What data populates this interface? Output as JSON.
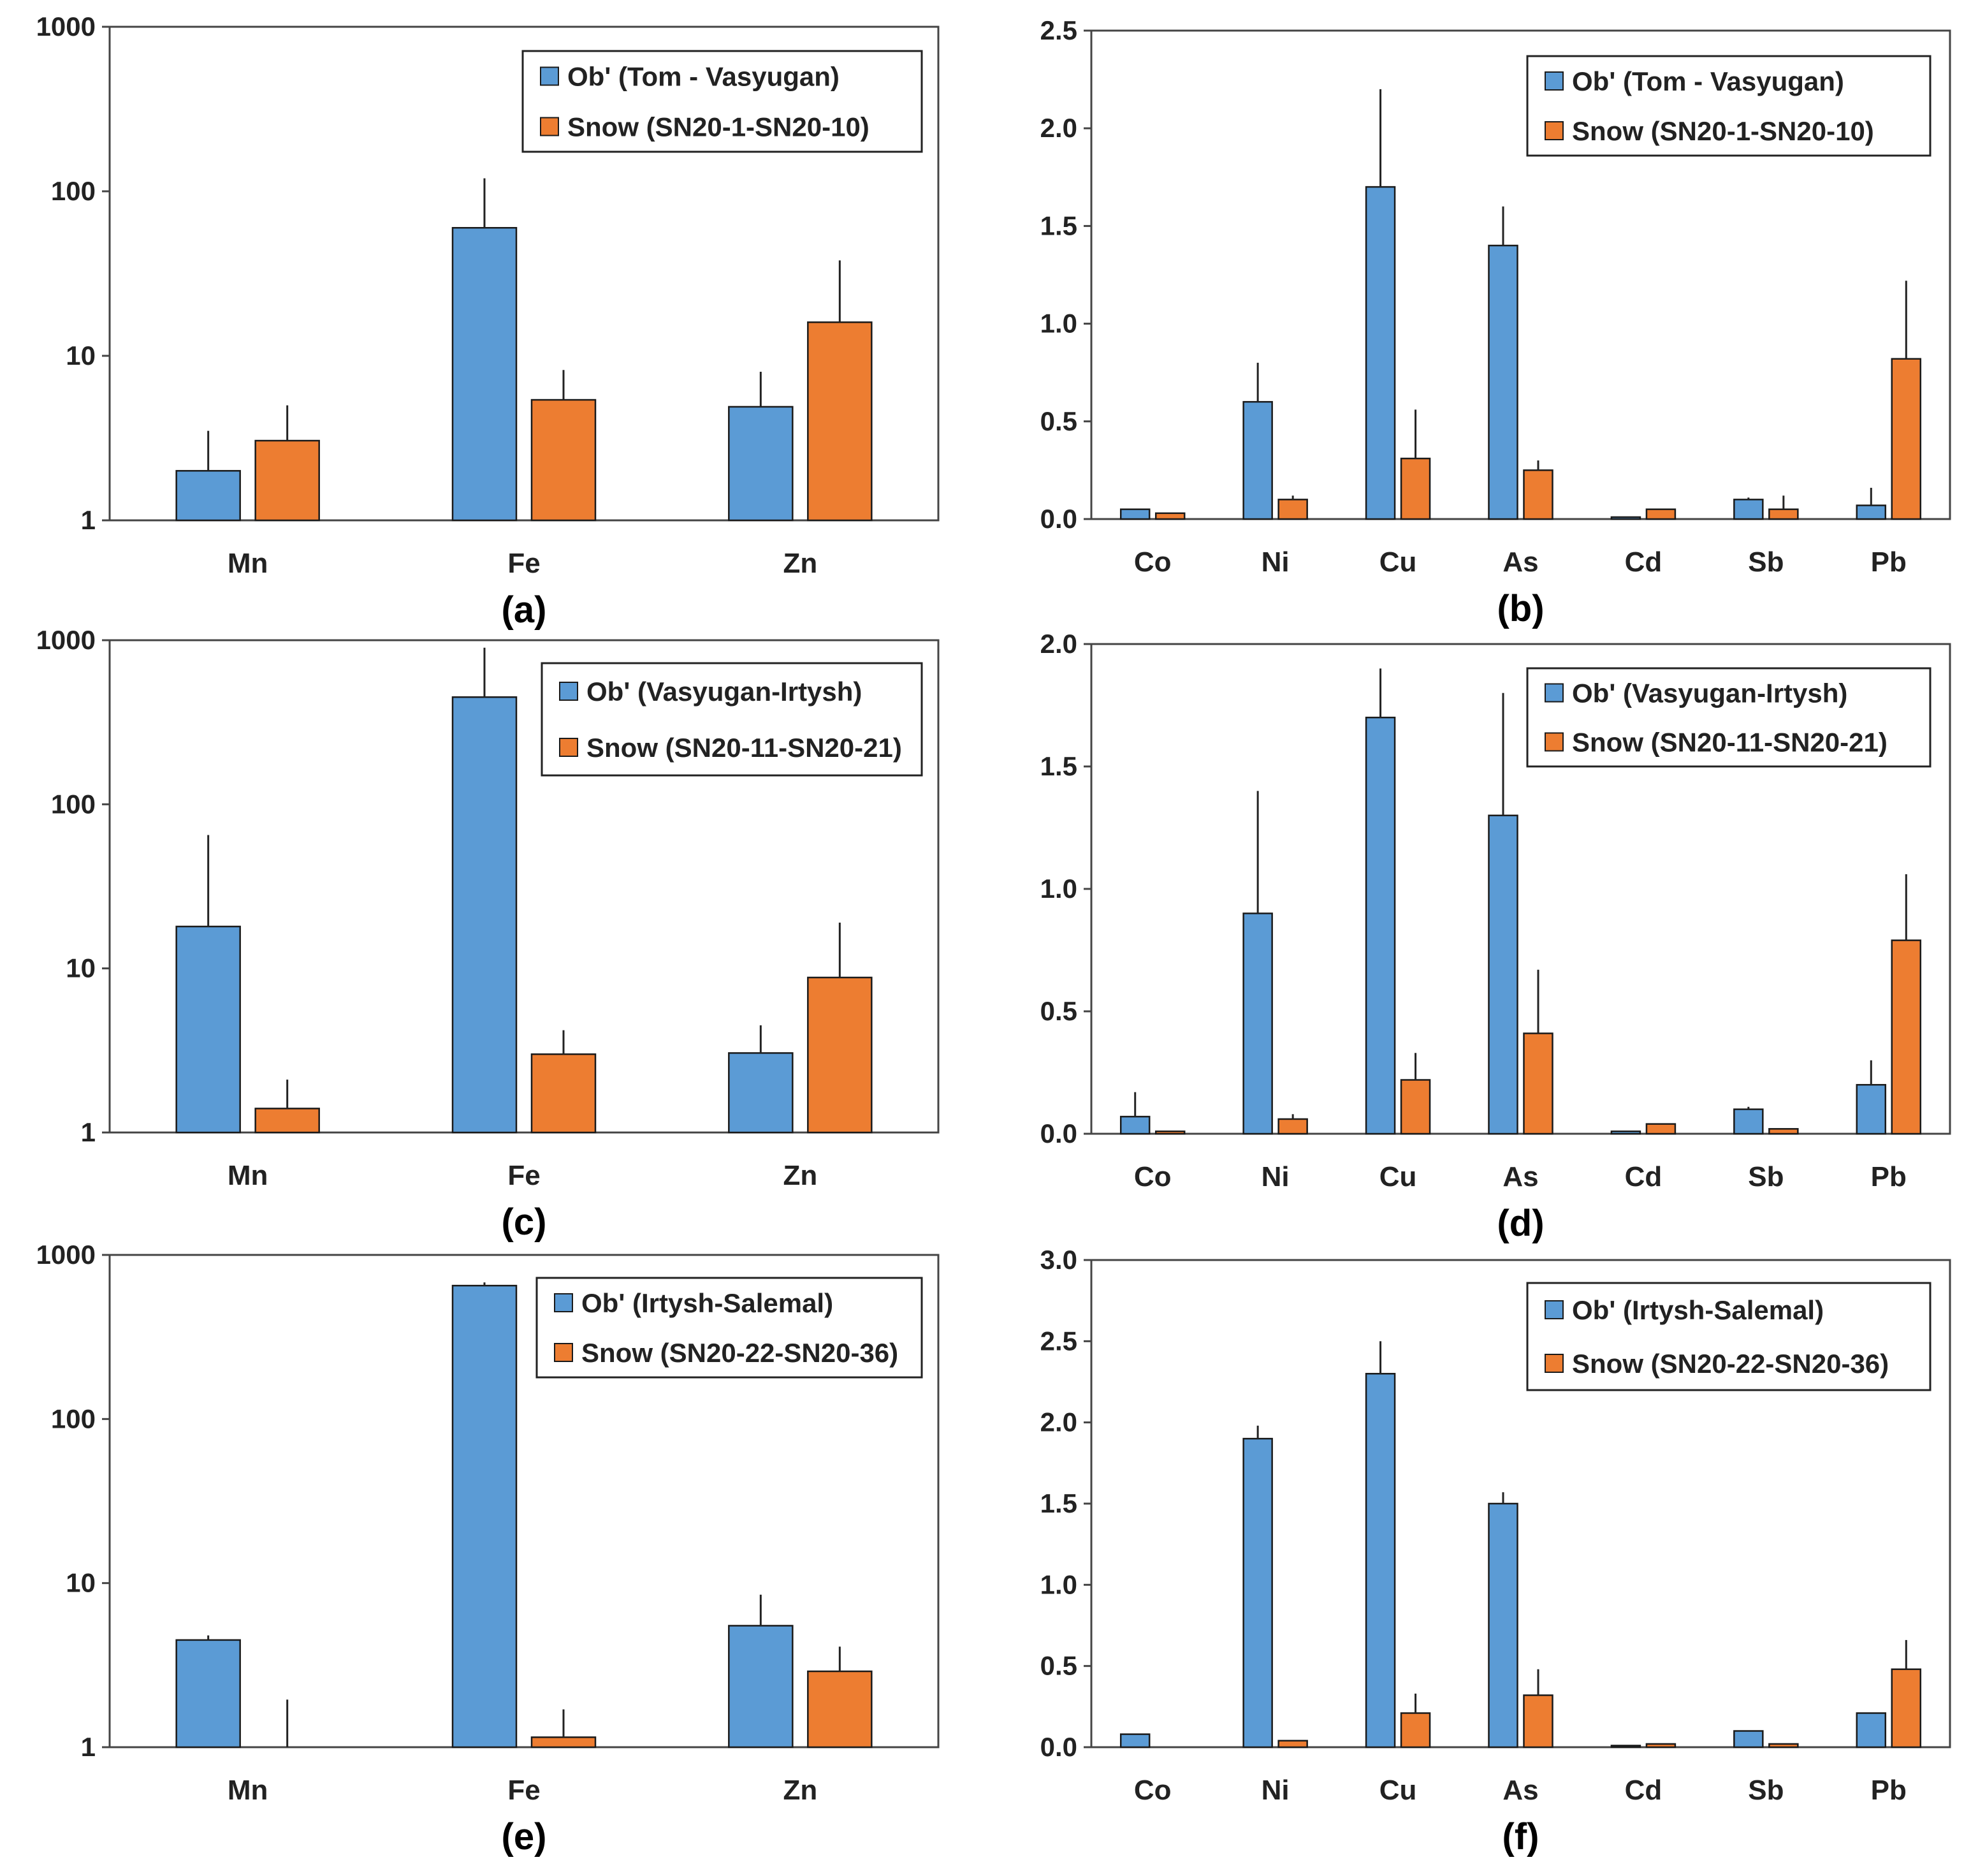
{
  "chart_data": [
    {
      "id": "a",
      "type": "bar",
      "scale": "log",
      "panel_label": "(a)",
      "categories": [
        "Mn",
        "Fe",
        "Zn"
      ],
      "ylim": [
        1,
        1000
      ],
      "y_ticks": [
        1,
        10,
        100,
        1000
      ],
      "y_tick_labels": [
        "1",
        "10",
        "100",
        "1000"
      ],
      "legend_position": "top-right",
      "series": [
        {
          "name": "Ob' (Tom - Vasyugan)",
          "color": "#5b9bd5",
          "values": [
            2,
            60,
            4.9
          ],
          "errors": [
            3.5,
            120,
            8
          ]
        },
        {
          "name": "Snow (SN20-1-SN20-10)",
          "color": "#ed7d31",
          "values": [
            3.05,
            5.4,
            16
          ],
          "errors": [
            5,
            8.2,
            38
          ]
        }
      ]
    },
    {
      "id": "b",
      "type": "bar",
      "scale": "linear",
      "panel_label": "(b)",
      "categories": [
        "Co",
        "Ni",
        "Cu",
        "As",
        "Cd",
        "Sb",
        "Pb"
      ],
      "ylim": [
        0,
        2.5
      ],
      "y_ticks": [
        0,
        0.5,
        1.0,
        1.5,
        2.0,
        2.5
      ],
      "y_tick_labels": [
        "0.0",
        "0.5",
        "1.0",
        "1.5",
        "2.0",
        "2.5"
      ],
      "legend_position": "top-right",
      "series": [
        {
          "name": "Ob' (Tom - Vasyugan)",
          "color": "#5b9bd5",
          "values": [
            0.05,
            0.6,
            1.7,
            1.4,
            0.01,
            0.1,
            0.07
          ],
          "errors": [
            0.05,
            0.8,
            2.2,
            1.6,
            0.01,
            0.11,
            0.16
          ]
        },
        {
          "name": "Snow (SN20-1-SN20-10)",
          "color": "#ed7d31",
          "values": [
            0.03,
            0.1,
            0.31,
            0.25,
            0.05,
            0.05,
            0.82
          ],
          "errors": [
            0.03,
            0.12,
            0.56,
            0.3,
            0.05,
            0.12,
            1.22
          ]
        }
      ]
    },
    {
      "id": "c",
      "type": "bar",
      "scale": "log",
      "panel_label": "(c)",
      "categories": [
        "Mn",
        "Fe",
        "Zn"
      ],
      "ylim": [
        1,
        1000
      ],
      "y_ticks": [
        1,
        10,
        100,
        1000
      ],
      "y_tick_labels": [
        "1",
        "10",
        "100",
        "1000"
      ],
      "legend_position": "top-right",
      "series": [
        {
          "name": "Ob' (Vasyugan-Irtysh)",
          "color": "#5b9bd5",
          "values": [
            18,
            450,
            3.05
          ],
          "errors": [
            65,
            900,
            4.5
          ]
        },
        {
          "name": "Snow (SN20-11-SN20-21)",
          "color": "#ed7d31",
          "values": [
            1.4,
            3,
            8.8
          ],
          "errors": [
            2.1,
            4.2,
            19
          ]
        }
      ]
    },
    {
      "id": "d",
      "type": "bar",
      "scale": "linear",
      "panel_label": "(d)",
      "categories": [
        "Co",
        "Ni",
        "Cu",
        "As",
        "Cd",
        "Sb",
        "Pb"
      ],
      "ylim": [
        0,
        2.0
      ],
      "y_ticks": [
        0,
        0.5,
        1.0,
        1.5,
        2.0
      ],
      "y_tick_labels": [
        "0.0",
        "0.5",
        "1.0",
        "1.5",
        "2.0"
      ],
      "legend_position": "top-right",
      "series": [
        {
          "name": "Ob' (Vasyugan-Irtysh)",
          "color": "#5b9bd5",
          "values": [
            0.07,
            0.9,
            1.7,
            1.3,
            0.01,
            0.1,
            0.2
          ],
          "errors": [
            0.17,
            1.4,
            1.9,
            1.8,
            0.01,
            0.11,
            0.3
          ]
        },
        {
          "name": "Snow (SN20-11-SN20-21)",
          "color": "#ed7d31",
          "values": [
            0.01,
            0.06,
            0.22,
            0.41,
            0.04,
            0.02,
            0.79
          ],
          "errors": [
            0.01,
            0.08,
            0.33,
            0.67,
            0.04,
            0.02,
            1.06
          ]
        }
      ]
    },
    {
      "id": "e",
      "type": "bar",
      "scale": "log",
      "panel_label": "(e)",
      "categories": [
        "Mn",
        "Fe",
        "Zn"
      ],
      "ylim": [
        1,
        1000
      ],
      "y_ticks": [
        1,
        10,
        100,
        1000
      ],
      "y_tick_labels": [
        "1",
        "10",
        "100",
        "1000"
      ],
      "legend_position": "top-right",
      "series": [
        {
          "name": "Ob' (Irtysh-Salemal)",
          "color": "#5b9bd5",
          "values": [
            4.5,
            650,
            5.5
          ],
          "errors": [
            4.8,
            680,
            8.5
          ]
        },
        {
          "name": "Snow (SN20-22-SN20-36)",
          "color": "#ed7d31",
          "values": [
            1,
            1.15,
            2.9
          ],
          "errors": [
            1.95,
            1.7,
            4.1
          ]
        }
      ]
    },
    {
      "id": "f",
      "type": "bar",
      "scale": "linear",
      "panel_label": "(f)",
      "categories": [
        "Co",
        "Ni",
        "Cu",
        "As",
        "Cd",
        "Sb",
        "Pb"
      ],
      "ylim": [
        0,
        3.0
      ],
      "y_ticks": [
        0,
        0.5,
        1.0,
        1.5,
        2.0,
        2.5,
        3.0
      ],
      "y_tick_labels": [
        "0.0",
        "0.5",
        "1.0",
        "1.5",
        "2.0",
        "2.5",
        "3.0"
      ],
      "legend_position": "top-right",
      "series": [
        {
          "name": "Ob' (Irtysh-Salemal)",
          "color": "#5b9bd5",
          "values": [
            0.08,
            1.9,
            2.3,
            1.5,
            0.01,
            0.1,
            0.21
          ],
          "errors": [
            0.08,
            1.98,
            2.5,
            1.57,
            0.01,
            0.1,
            0.21
          ]
        },
        {
          "name": "Snow (SN20-22-SN20-36)",
          "color": "#ed7d31",
          "values": [
            0,
            0.04,
            0.21,
            0.32,
            0.02,
            0.02,
            0.48
          ],
          "errors": [
            0,
            0.04,
            0.33,
            0.48,
            0.02,
            0.02,
            0.66
          ]
        }
      ]
    }
  ]
}
